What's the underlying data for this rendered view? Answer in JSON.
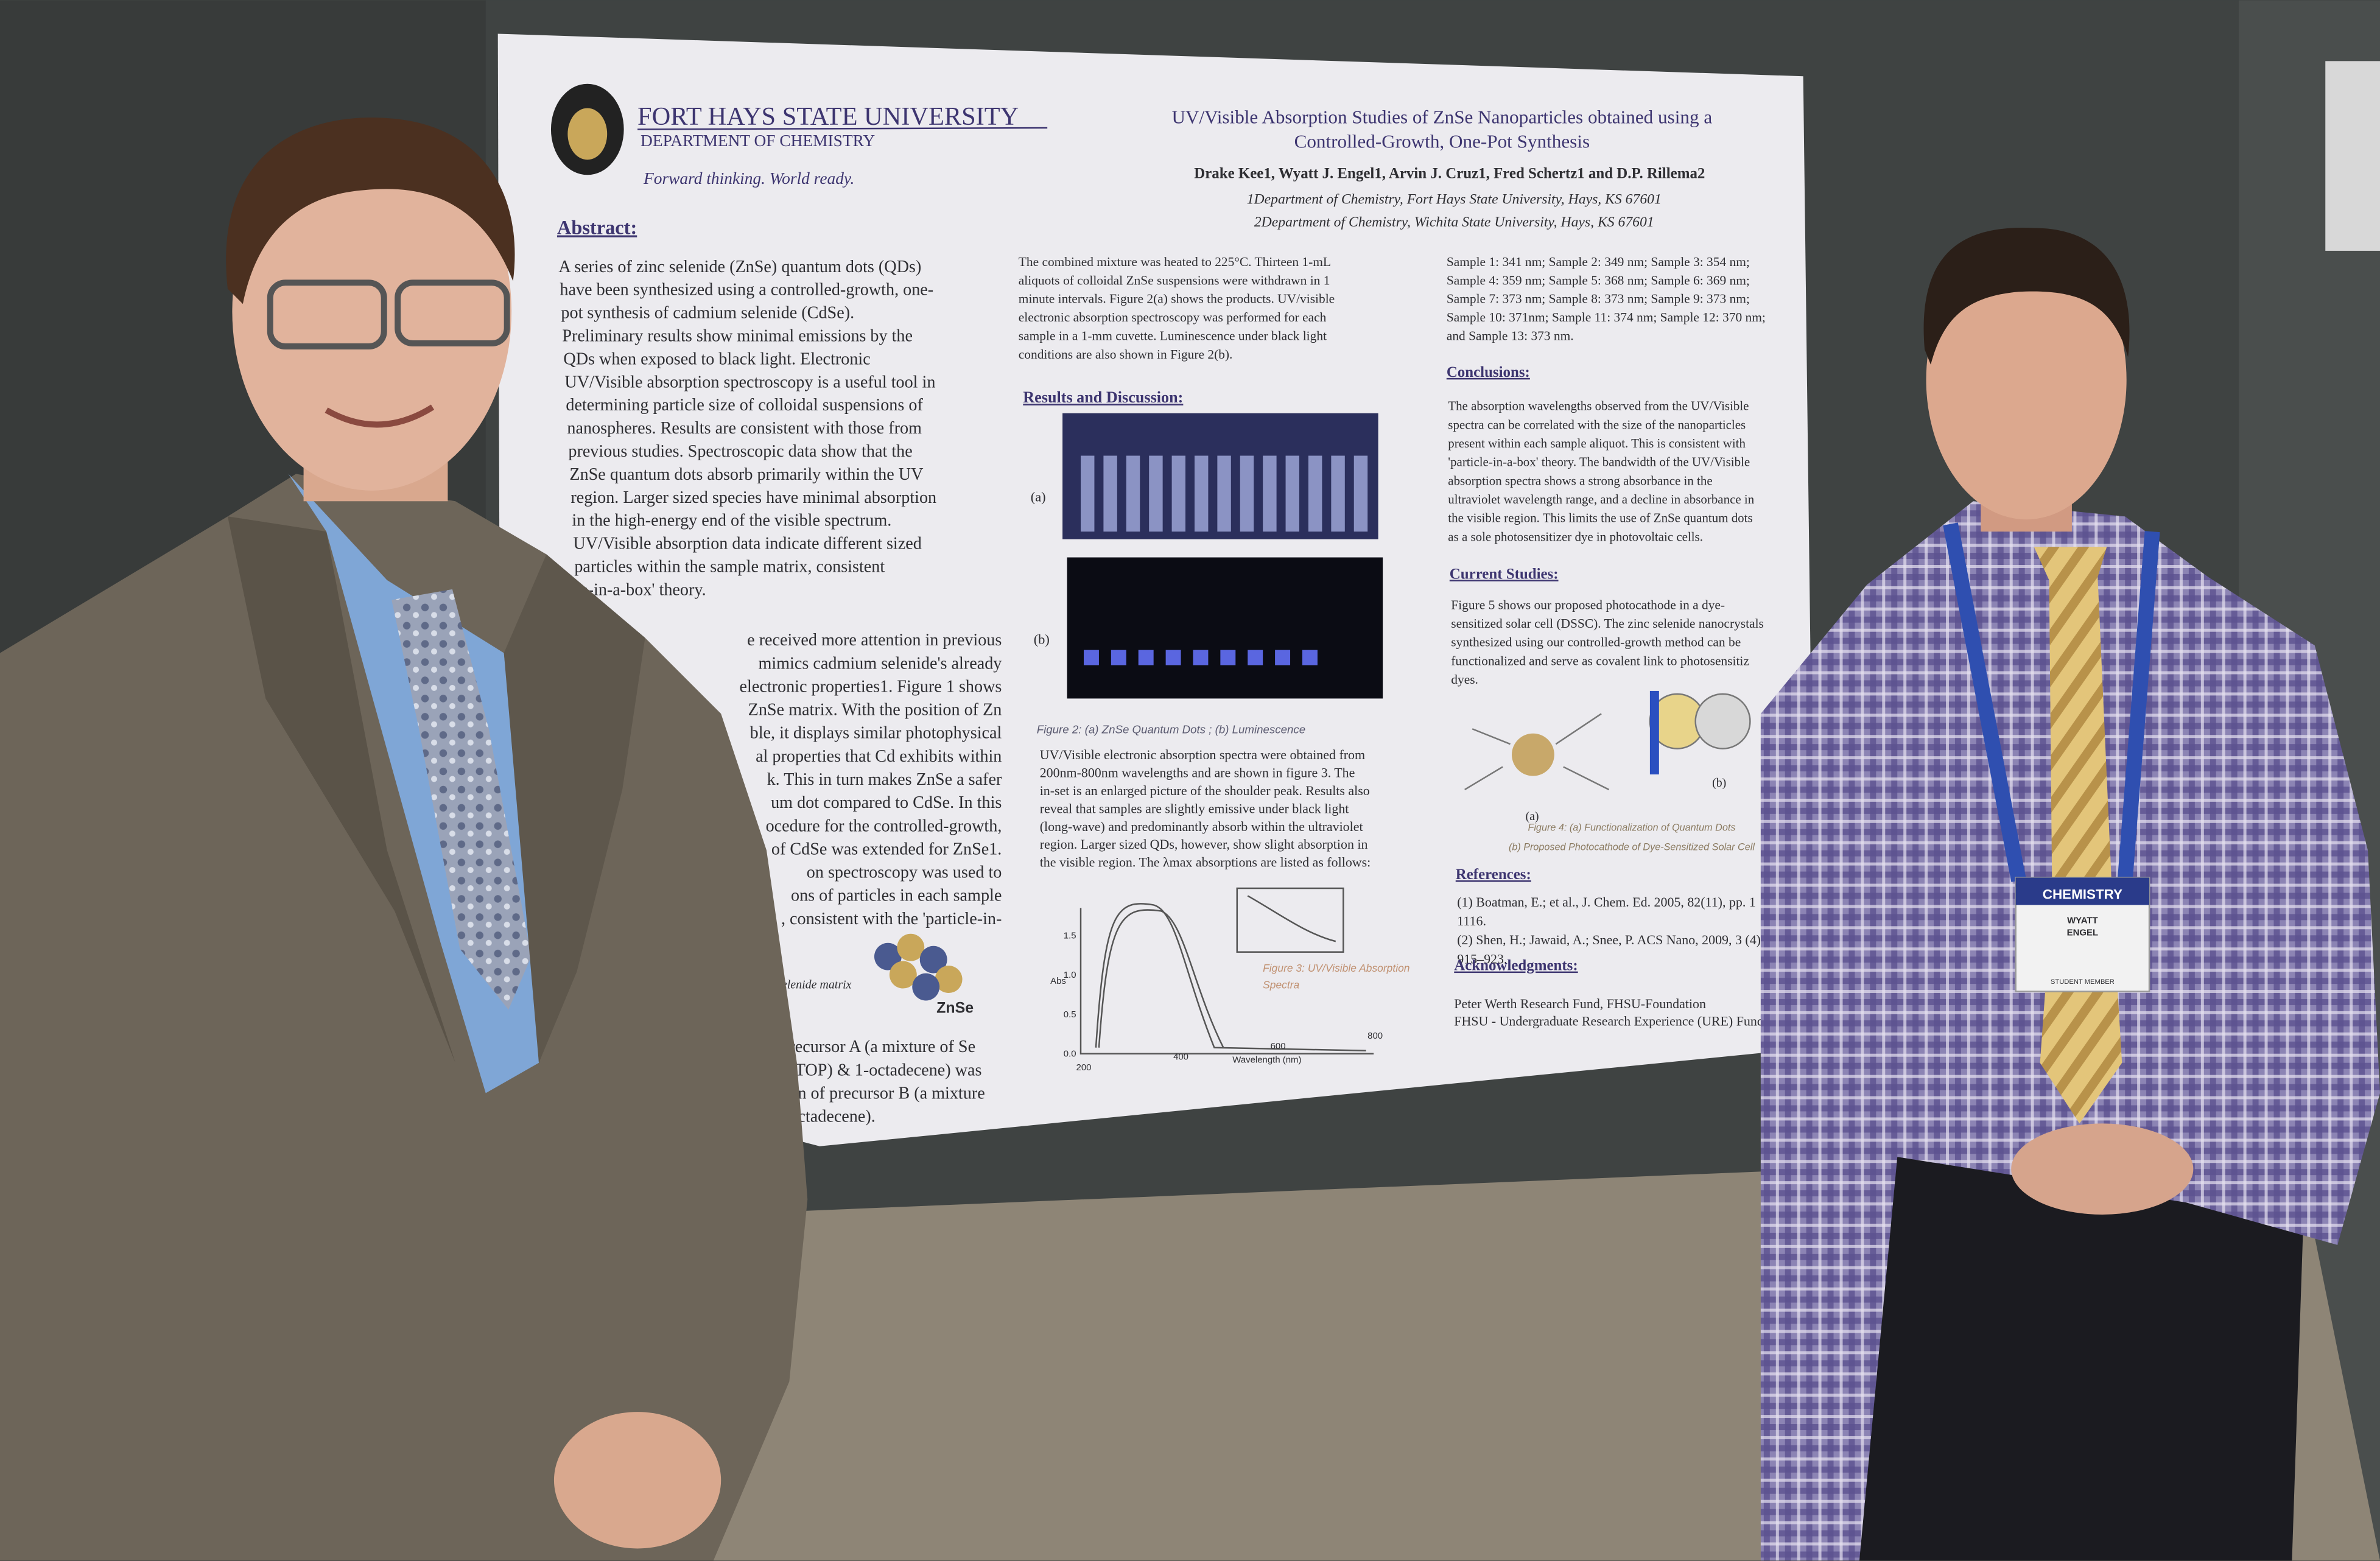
{
  "header": {
    "university": "FORT HAYS STATE UNIVERSITY",
    "department": "DEPARTMENT OF CHEMISTRY",
    "tagline": "Forward thinking. World ready."
  },
  "title": {
    "lines": [
      "UV/Visible Absorption Studies of ZnSe Nanoparticles obtained using a",
      "Controlled-Growth, One-Pot Synthesis"
    ]
  },
  "authors": "Drake Kee1, Wyatt J. Engel1, Arvin J. Cruz1, Fred Schertz1 and D.P. Rillema2",
  "affiliations": [
    "1Department of Chemistry, Fort Hays State University, Hays, KS 67601",
    "2Department of Chemistry, Wichita State University, Hays, KS 67601"
  ],
  "abstract": {
    "heading": "Abstract:",
    "lines": [
      "A series of zinc selenide (ZnSe) quantum dots (QDs)",
      "have been synthesized using a controlled-growth, one-",
      "pot synthesis of cadmium selenide (CdSe).",
      "Preliminary results show minimal emissions by the",
      "QDs when exposed to black light. Electronic",
      "UV/Visible absorption spectroscopy is a useful tool in",
      "determining particle size of colloidal suspensions of",
      "nanospheres. Results are consistent with those from",
      "previous studies. Spectroscopic data show that the",
      "ZnSe quantum dots absorb primarily within the UV",
      "region. Larger sized species have minimal absorption",
      "in the high-energy end of the visible spectrum.",
      "UV/Visible absorption data indicate different sized",
      "particles within the sample matrix, consistent",
      "le-in-a-box' theory."
    ]
  },
  "introduction": {
    "lines": [
      "e received more attention in previous",
      "mimics cadmium selenide's already",
      "electronic properties1. Figure 1 shows",
      "ZnSe matrix. With the position of Zn",
      "ble, it displays similar photophysical",
      "al properties that Cd exhibits within",
      "k. This in turn makes ZnSe a safer",
      "um dot compared to CdSe. In this",
      "ocedure for the controlled-growth,",
      "of CdSe was extended for ZnSe1.",
      "on spectroscopy was used to",
      "ons of particles in each sample",
      ", consistent with the 'particle-in-"
    ],
    "figure_caption": "elenide matrix",
    "molecule_label": "ZnSe"
  },
  "methods": {
    "lines": [
      "recursor A (a mixture of Se",
      "(TOP) & 1-octadecene) was",
      "on of precursor B (a mixture",
      "octadecene)."
    ]
  },
  "procedure": {
    "lines": [
      "The combined mixture was heated to 225°C. Thirteen 1-mL",
      "aliquots of colloidal ZnSe suspensions were withdrawn in 1",
      "minute intervals. Figure 2(a) shows the products. UV/visible",
      "electronic absorption spectroscopy was performed for each",
      "sample in a 1-mm cuvette. Luminescence under black light",
      "conditions are also shown in Figure 2(b)."
    ]
  },
  "results": {
    "heading": "Results and Discussion:",
    "panel_a": "(a)",
    "panel_b": "(b)",
    "figure2_caption": "Figure 2: (a) ZnSe Quantum Dots ; (b) Luminescence",
    "lines": [
      "UV/Visible electronic absorption spectra were obtained from",
      "200nm-800nm wavelengths and are shown in figure 3. The",
      "in-set is an enlarged picture of the shoulder peak. Results also",
      "reveal that samples are slightly emissive under black light",
      "(long-wave) and predominantly absorb within the ultraviolet",
      "region. Larger sized QDs, however, show slight absorption in",
      "the visible region. The λmax absorptions are listed as follows:"
    ],
    "figure3": {
      "caption": [
        "Figure 3: UV/Visible Absorption",
        "Spectra"
      ],
      "y_label": "Abs",
      "x_label": "Wavelength (nm)",
      "x_ticks": [
        "200",
        "400",
        "600",
        "800"
      ],
      "y_ticks": [
        "0.0",
        "0.5",
        "1.0",
        "1.5"
      ]
    },
    "samples": [
      "Sample 1: 341 nm; Sample 2: 349 nm; Sample 3: 354 nm;",
      "Sample 4: 359 nm; Sample 5: 368 nm; Sample 6: 369 nm;",
      "Sample 7: 373 nm; Sample 8: 373 nm; Sample 9: 373 nm;",
      "Sample 10: 371nm; Sample 11: 374 nm; Sample 12: 370 nm;",
      "and Sample 13: 373 nm."
    ]
  },
  "conclusions": {
    "heading": "Conclusions:",
    "lines": [
      "The absorption wavelengths observed from the UV/Visible",
      "spectra can be correlated with the size of the nanoparticles",
      "present within each sample aliquot. This is consistent with",
      "'particle-in-a-box' theory. The bandwidth of the UV/Visible",
      "absorption spectra shows a strong absorbance in the",
      "ultraviolet wavelength range, and a decline in absorbance in",
      "the visible region. This limits the use of ZnSe quantum dots",
      "as a sole photosensitizer dye in photovoltaic cells."
    ]
  },
  "current_studies": {
    "heading": "Current Studies:",
    "lines": [
      "Figure 5 shows our proposed photocathode in a dye-",
      "sensitized solar cell (DSSC). The zinc selenide nanocrystals",
      "synthesized using our controlled-growth method can be",
      "functionalized and serve as covalent link to photosensitiz",
      "dyes."
    ],
    "panel_a": "(a)",
    "panel_b": "(b)",
    "figure_caption": [
      "Figure 4: (a) Functionalization of Quantum Dots",
      "(b) Proposed Photocathode of Dye-Sensitized Solar Cell"
    ]
  },
  "references": {
    "heading": "References:",
    "lines": [
      "(1) Boatman, E.; et al., J. Chem. Ed. 2005, 82(11), pp. 1",
      "1116.",
      "(2) Shen, H.; Jawaid, A.; Snee, P. ACS Nano, 2009, 3 (4)",
      "915–923."
    ]
  },
  "acknowledgments": {
    "heading": "Acknowledgments:",
    "lines": [
      "Peter Werth Research Fund, FHSU-Foundation",
      "FHSU - Undergraduate Research Experience (URE) Fund"
    ]
  },
  "badge": {
    "event": "CHEMISTRY",
    "first_name": "WYATT",
    "last_name": "ENGEL",
    "role": "STUDENT MEMBER"
  }
}
